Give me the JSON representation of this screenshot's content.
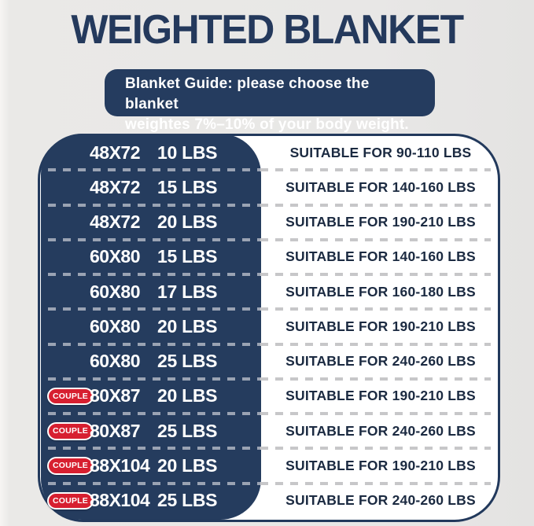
{
  "title": "WEIGHTED BLANKET",
  "banner": {
    "line1": "Blanket Guide: please choose the blanket",
    "line2": "weightes 7%–10% of your body weight."
  },
  "table": {
    "couple_badge_label": "COUPLE",
    "rows": [
      {
        "couple": false,
        "size": "48X72",
        "weight": "10 LBS",
        "suitable": "SUITABLE FOR 90-110 LBS"
      },
      {
        "couple": false,
        "size": "48X72",
        "weight": "15 LBS",
        "suitable": "SUITABLE FOR 140-160 LBS"
      },
      {
        "couple": false,
        "size": "48X72",
        "weight": "20 LBS",
        "suitable": "SUITABLE FOR 190-210 LBS"
      },
      {
        "couple": false,
        "size": "60X80",
        "weight": "15 LBS",
        "suitable": "SUITABLE FOR 140-160 LBS"
      },
      {
        "couple": false,
        "size": "60X80",
        "weight": "17 LBS",
        "suitable": "SUITABLE FOR 160-180 LBS"
      },
      {
        "couple": false,
        "size": "60X80",
        "weight": "20 LBS",
        "suitable": "SUITABLE FOR 190-210 LBS"
      },
      {
        "couple": false,
        "size": "60X80",
        "weight": "25 LBS",
        "suitable": "SUITABLE FOR 240-260 LBS"
      },
      {
        "couple": true,
        "size": "80X87",
        "weight": "20 LBS",
        "suitable": "SUITABLE FOR 190-210 LBS"
      },
      {
        "couple": true,
        "size": "80X87",
        "weight": "25 LBS",
        "suitable": "SUITABLE FOR 240-260 LBS"
      },
      {
        "couple": true,
        "size": "88X104",
        "weight": "20 LBS",
        "suitable": "SUITABLE FOR 190-210 LBS"
      },
      {
        "couple": true,
        "size": "88X104",
        "weight": "25 LBS",
        "suitable": "SUITABLE FOR 240-260 LBS"
      }
    ]
  },
  "colors": {
    "background": "#e8e7e6",
    "navy_panel": "#253c5e",
    "title_navy": "#24395c",
    "banner_navy": "#253c5f",
    "badge_red": "#d71f30",
    "dash_on_navy": "#9aa3b3",
    "dash_on_white": "#c7c7c9",
    "right_text": "#1b2a41"
  },
  "chart_data": {
    "type": "table",
    "title": "WEIGHTED BLANKET",
    "subtitle": "Blanket Guide: please choose the blanket weightes 7%–10% of your body weight.",
    "columns": [
      "couple",
      "size_inches",
      "blanket_weight",
      "suitable_body_weight"
    ],
    "rows": [
      [
        "",
        "48X72",
        "10 LBS",
        "SUITABLE FOR 90-110 LBS"
      ],
      [
        "",
        "48X72",
        "15 LBS",
        "SUITABLE FOR 140-160 LBS"
      ],
      [
        "",
        "48X72",
        "20 LBS",
        "SUITABLE FOR 190-210 LBS"
      ],
      [
        "",
        "60X80",
        "15 LBS",
        "SUITABLE FOR 140-160 LBS"
      ],
      [
        "",
        "60X80",
        "17 LBS",
        "SUITABLE FOR 160-180 LBS"
      ],
      [
        "",
        "60X80",
        "20 LBS",
        "SUITABLE FOR 190-210 LBS"
      ],
      [
        "",
        "60X80",
        "25 LBS",
        "SUITABLE FOR 240-260 LBS"
      ],
      [
        "COUPLE",
        "80X87",
        "20 LBS",
        "SUITABLE FOR 190-210 LBS"
      ],
      [
        "COUPLE",
        "80X87",
        "25 LBS",
        "SUITABLE FOR 240-260 LBS"
      ],
      [
        "COUPLE",
        "88X104",
        "20 LBS",
        "SUITABLE FOR 190-210 LBS"
      ],
      [
        "COUPLE",
        "88X104",
        "25 LBS",
        "SUITABLE FOR 240-260 LBS"
      ]
    ]
  }
}
